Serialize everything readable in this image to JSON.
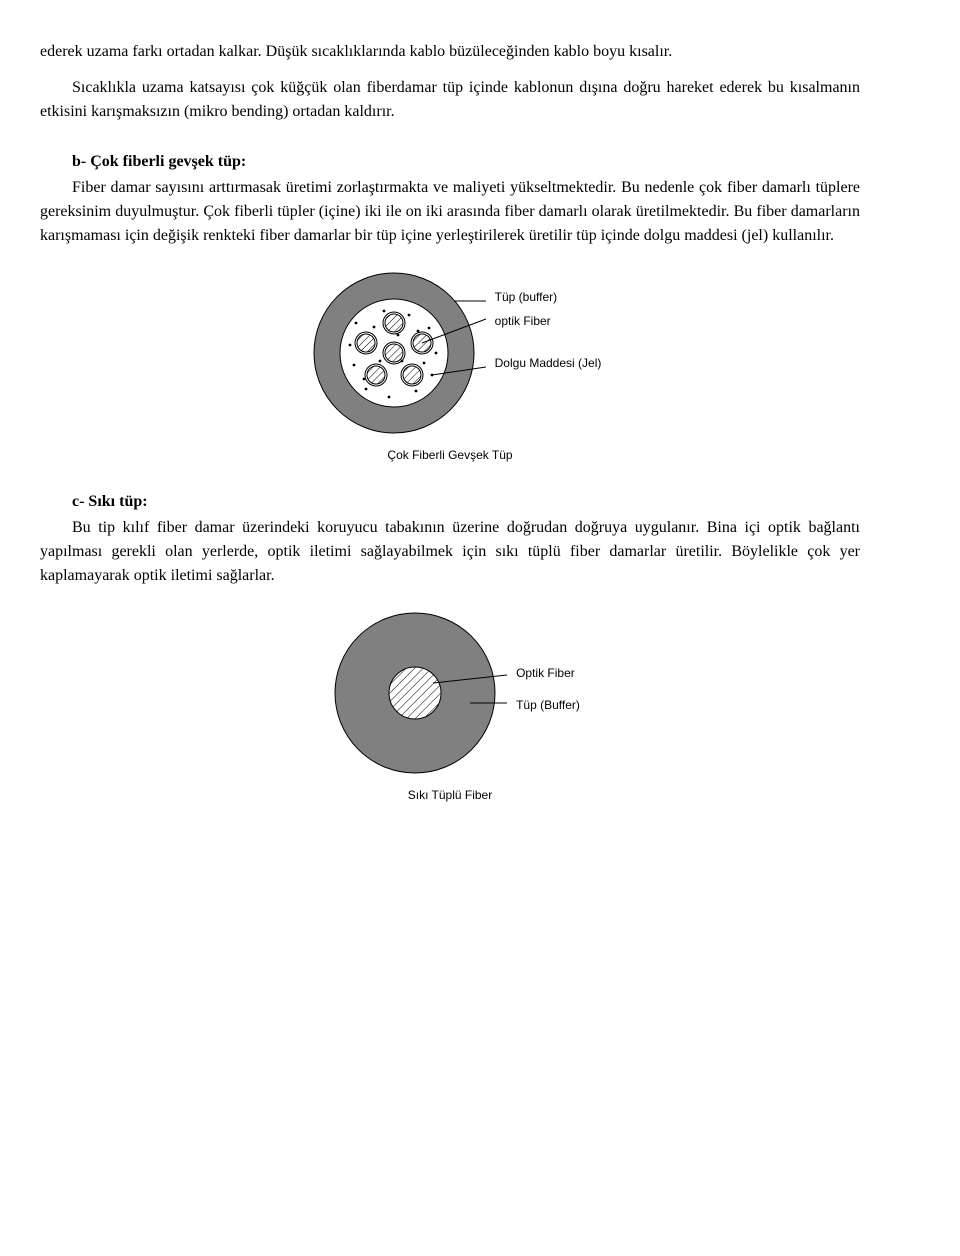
{
  "text": {
    "p1": "ederek uzama farkı ortadan kalkar. Düşük sıcaklıklarında kablo büzüleceğinden kablo boyu kısalır.",
    "p2": "Sıcaklıkla uzama katsayısı çok küğçük olan fiberdamar tüp içinde kablonun dışına doğru hareket ederek bu kısalmanın etkisini karışmaksızın (mikro bending) ortadan kaldırır.",
    "h_b": "b- Çok fiberli gevşek tüp:",
    "p3": "Fiber damar sayısını arttırmasak üretimi zorlaştırmakta ve maliyeti yükseltmektedir. Bu nedenle çok fiber damarlı tüplere gereksinim duyulmuştur. Çok fiberli tüpler (içine) iki ile on iki arasında fiber damarlı olarak üretilmektedir. Bu fiber damarların karışmaması için değişik renkteki fiber damarlar bir tüp içine yerleştirilerek üretilir tüp içinde dolgu maddesi (jel) kullanılır.",
    "h_c": "c- Sıkı tüp:",
    "p4": "Bu tip kılıf fiber damar üzerindeki koruyucu tabakının üzerine doğrudan doğruya uygulanır. Bina içi optik bağlantı yapılması gerekli olan yerlerde, optik iletimi sağlayabilmek için sıkı tüplü fiber damarlar üretilir. Böylelikle çok yer kaplamayarak optik iletimi sağlarlar."
  },
  "fig1": {
    "labels": {
      "buffer": "Tüp (buffer)",
      "fiber": "optik Fiber",
      "jel": "Dolgu Maddesi (Jel)"
    },
    "caption": "Çok Fiberli Gevşek Tüp",
    "colors": {
      "ring": "#808080",
      "stroke": "#000000",
      "inner_bg": "#ffffff",
      "fiber_fill": "#ffffff"
    },
    "geometry": {
      "outer_r": 80,
      "inner_r": 54,
      "fiber_r": 9,
      "fiber_positions": [
        [
          0,
          -30
        ],
        [
          -28,
          -10
        ],
        [
          28,
          -10
        ],
        [
          -18,
          22
        ],
        [
          18,
          22
        ],
        [
          0,
          0
        ]
      ],
      "dot_r": 1.4,
      "dot_positions": [
        [
          -38,
          -30
        ],
        [
          -10,
          -42
        ],
        [
          15,
          -38
        ],
        [
          35,
          -25
        ],
        [
          42,
          0
        ],
        [
          38,
          22
        ],
        [
          22,
          38
        ],
        [
          -5,
          44
        ],
        [
          -28,
          36
        ],
        [
          -40,
          12
        ],
        [
          -44,
          -8
        ],
        [
          8,
          8
        ],
        [
          -14,
          8
        ],
        [
          30,
          10
        ],
        [
          -30,
          26
        ],
        [
          4,
          -18
        ],
        [
          -20,
          -26
        ],
        [
          24,
          -22
        ]
      ]
    }
  },
  "fig2": {
    "labels": {
      "fiber": "Optik Fiber",
      "buffer": "Tüp (Buffer)"
    },
    "caption": "Sıkı Tüplü Fiber",
    "colors": {
      "ring": "#808080",
      "stroke": "#000000",
      "core": "#ffffff"
    },
    "geometry": {
      "outer_r": 80,
      "core_r": 26
    }
  }
}
